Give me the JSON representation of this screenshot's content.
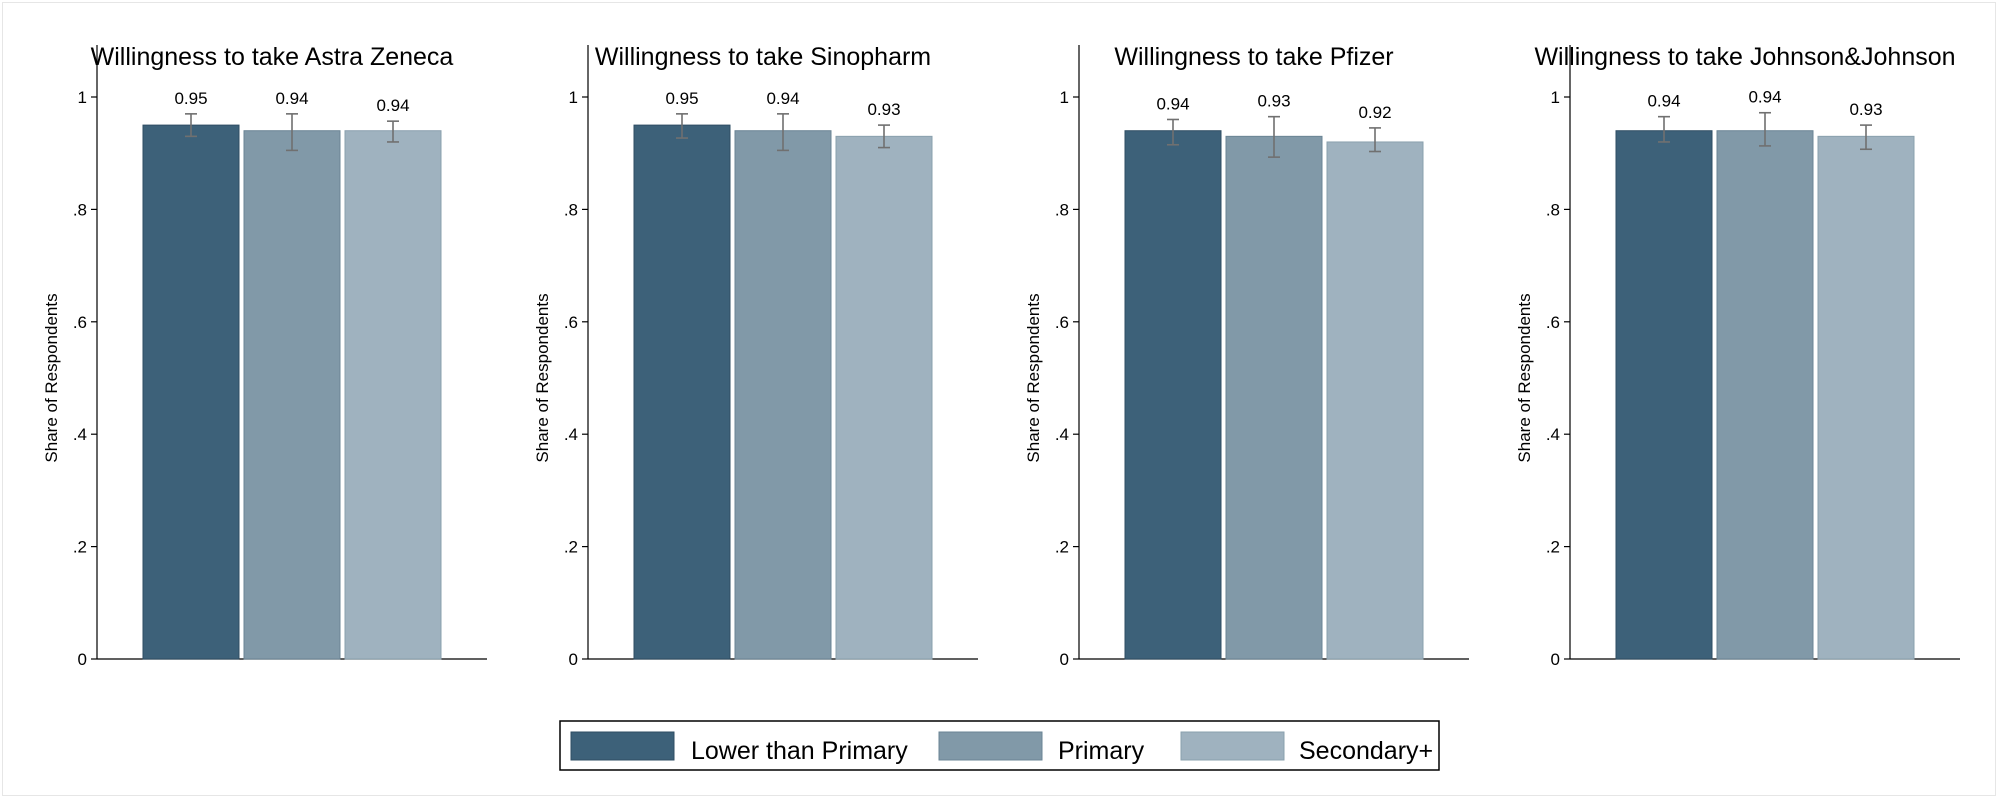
{
  "legend": [
    {
      "label": "Lower than Primary",
      "color": "#3d6179"
    },
    {
      "label": "Primary",
      "color": "#8199a8"
    },
    {
      "label": "Secondary+",
      "color": "#9fb2bf"
    }
  ],
  "chart_data": [
    {
      "type": "bar",
      "title": "Willingness to take Astra Zeneca",
      "ylabel": "Share of Respondents",
      "ylim": [
        0,
        1
      ],
      "yticks": [
        "0",
        ".2",
        ".4",
        ".6",
        ".8",
        "1"
      ],
      "grid": false,
      "legend_position": "bottom",
      "series": [
        {
          "name": "Lower than Primary",
          "value": 0.95,
          "label": "0.95",
          "ci": [
            0.93,
            0.97
          ]
        },
        {
          "name": "Primary",
          "value": 0.94,
          "label": "0.94",
          "ci": [
            0.905,
            0.97
          ]
        },
        {
          "name": "Secondary+",
          "value": 0.94,
          "label": "0.94",
          "ci": [
            0.92,
            0.957
          ]
        }
      ]
    },
    {
      "type": "bar",
      "title": "Willingness to take Sinopharm",
      "ylabel": "Share of Respondents",
      "ylim": [
        0,
        1
      ],
      "yticks": [
        "0",
        ".2",
        ".4",
        ".6",
        ".8",
        "1"
      ],
      "grid": false,
      "legend_position": "bottom",
      "series": [
        {
          "name": "Lower than Primary",
          "value": 0.95,
          "label": "0.95",
          "ci": [
            0.927,
            0.97
          ]
        },
        {
          "name": "Primary",
          "value": 0.94,
          "label": "0.94",
          "ci": [
            0.905,
            0.97
          ]
        },
        {
          "name": "Secondary+",
          "value": 0.93,
          "label": "0.93",
          "ci": [
            0.91,
            0.95
          ]
        }
      ]
    },
    {
      "type": "bar",
      "title": "Willingness to take Pfizer",
      "ylabel": "Share of Respondents",
      "ylim": [
        0,
        1
      ],
      "yticks": [
        "0",
        ".2",
        ".4",
        ".6",
        ".8",
        "1"
      ],
      "grid": false,
      "legend_position": "bottom",
      "series": [
        {
          "name": "Lower than Primary",
          "value": 0.94,
          "label": "0.94",
          "ci": [
            0.915,
            0.96
          ]
        },
        {
          "name": "Primary",
          "value": 0.93,
          "label": "0.93",
          "ci": [
            0.893,
            0.965
          ]
        },
        {
          "name": "Secondary+",
          "value": 0.92,
          "label": "0.92",
          "ci": [
            0.903,
            0.945
          ]
        }
      ]
    },
    {
      "type": "bar",
      "title": "Willingness to take Johnson&Johnson",
      "ylabel": "Share of Respondents",
      "ylim": [
        0,
        1
      ],
      "yticks": [
        "0",
        ".2",
        ".4",
        ".6",
        ".8",
        "1"
      ],
      "grid": false,
      "legend_position": "bottom",
      "series": [
        {
          "name": "Lower than Primary",
          "value": 0.94,
          "label": "0.94",
          "ci": [
            0.92,
            0.965
          ]
        },
        {
          "name": "Primary",
          "value": 0.94,
          "label": "0.94",
          "ci": [
            0.913,
            0.972
          ]
        },
        {
          "name": "Secondary+",
          "value": 0.93,
          "label": "0.93",
          "ci": [
            0.907,
            0.95
          ]
        }
      ]
    }
  ]
}
